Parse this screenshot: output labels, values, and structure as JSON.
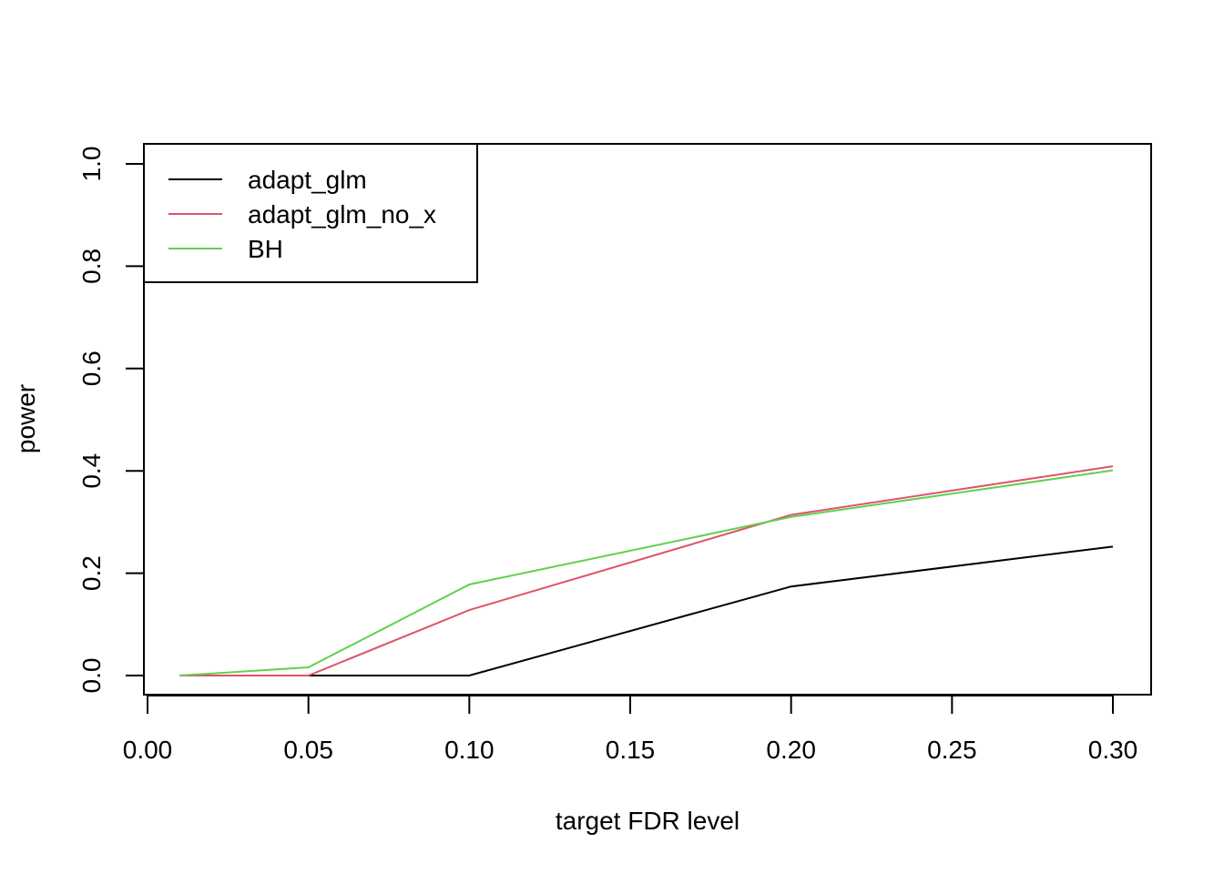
{
  "chart_data": {
    "type": "line",
    "title": "",
    "xlabel": "target FDR level",
    "ylabel": "power",
    "xlim": [
      0.0,
      0.3
    ],
    "ylim": [
      0.0,
      1.0
    ],
    "xticks": [
      "0.00",
      "0.05",
      "0.10",
      "0.15",
      "0.20",
      "0.25",
      "0.30"
    ],
    "yticks": [
      "0.0",
      "0.2",
      "0.4",
      "0.6",
      "0.8",
      "1.0"
    ],
    "x": [
      0.01,
      0.05,
      0.1,
      0.2,
      0.3
    ],
    "legend_position": "top-left",
    "grid": false,
    "series": [
      {
        "name": "adapt_glm",
        "color": "#000000",
        "values": [
          0.0,
          0.0,
          0.0,
          0.174,
          0.252
        ]
      },
      {
        "name": "adapt_glm_no_x",
        "color": "#DF536B",
        "values": [
          0.0,
          0.0,
          0.128,
          0.314,
          0.409
        ]
      },
      {
        "name": "BH",
        "color": "#61D04F",
        "values": [
          0.0,
          0.016,
          0.178,
          0.31,
          0.401
        ]
      }
    ]
  }
}
